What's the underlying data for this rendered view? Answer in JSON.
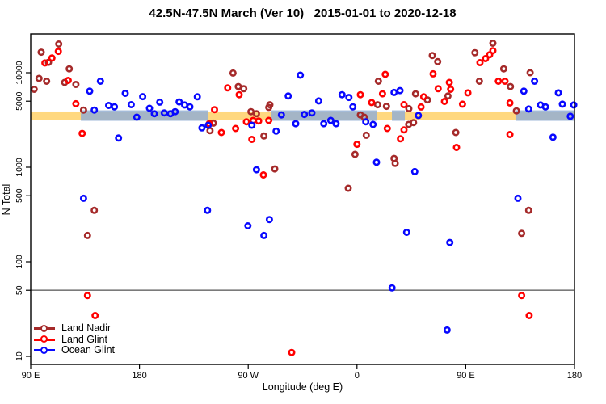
{
  "chart_data": {
    "type": "scatter",
    "title": "42.5N-47.5N March (Ver 10)   2015-01-01 to 2020-12-18",
    "x_axis": {
      "label": "Longitude (deg E)",
      "range": [
        90,
        540
      ],
      "ticks": [
        {
          "value": 90,
          "label": "90 E"
        },
        {
          "value": 180,
          "label": "180"
        },
        {
          "value": 270,
          "label": "90 W"
        },
        {
          "value": 360,
          "label": "0"
        },
        {
          "value": 450,
          "label": "90 E"
        },
        {
          "value": 540,
          "label": "180"
        }
      ]
    },
    "y_axis": {
      "label": "N Total",
      "scale": "log",
      "range": [
        10,
        25000
      ],
      "ticks": [
        {
          "value": 10,
          "label": "10"
        },
        {
          "value": 50,
          "label": "50"
        },
        {
          "value": 100,
          "label": "100"
        },
        {
          "value": 500,
          "label": "500"
        },
        {
          "value": 1000,
          "label": "1000"
        },
        {
          "value": 5000,
          "label": "5000"
        },
        {
          "value": 10000,
          "label": "10000"
        }
      ]
    },
    "reference_line": {
      "value": 50,
      "color": "#7a7a7a"
    },
    "bands": [
      {
        "name": "orange-band",
        "color": "#FFD87F",
        "opacity": 1.0,
        "lon_from": 90,
        "lon_to": 540,
        "value_from": 3160,
        "value_to": 3890
      },
      {
        "name": "blue-band-1",
        "color": "#94AFD2",
        "opacity": 0.85,
        "lon_from": 131.5,
        "lon_to": 236.5,
        "value_from": 3100,
        "value_to": 4000
      },
      {
        "name": "blue-band-2",
        "color": "#94AFD2",
        "opacity": 0.85,
        "lon_from": 288.6,
        "lon_to": 376.2,
        "value_from": 3100,
        "value_to": 4000
      },
      {
        "name": "blue-band-3",
        "color": "#94AFD2",
        "opacity": 0.85,
        "lon_from": 388.9,
        "lon_to": 399.6,
        "value_from": 3100,
        "value_to": 4000
      },
      {
        "name": "blue-band-4",
        "color": "#94AFD2",
        "opacity": 0.85,
        "lon_from": 491.2,
        "lon_to": 540,
        "value_from": 3100,
        "value_to": 4000
      }
    ],
    "series": [
      {
        "name": "Land Nadir",
        "color": "#A52A2A",
        "points": [
          [
            98.7,
            16500
          ],
          [
            113.2,
            20100
          ],
          [
            104.7,
            12900
          ],
          [
            121.9,
            11000
          ],
          [
            96.9,
            8710
          ],
          [
            103.2,
            8140
          ],
          [
            92.9,
            6680
          ],
          [
            118.1,
            7890
          ],
          [
            127.4,
            7520
          ],
          [
            257.4,
            9920
          ],
          [
            261.8,
            7140
          ],
          [
            266.3,
            6770
          ],
          [
            287.9,
            4590
          ],
          [
            377.7,
            8140
          ],
          [
            377.1,
            4590
          ],
          [
            384.4,
            4410
          ],
          [
            422.3,
            15200
          ],
          [
            426.8,
            13100
          ],
          [
            472.5,
            20500
          ],
          [
            457.6,
            16300
          ],
          [
            481.4,
            11000
          ],
          [
            461.3,
            8140
          ],
          [
            487,
            7140
          ],
          [
            435.3,
            5670
          ],
          [
            408.5,
            5980
          ],
          [
            418.3,
            5160
          ],
          [
            402.9,
            4170
          ],
          [
            133.7,
            4030
          ],
          [
            241.1,
            2930
          ],
          [
            238.4,
            2440
          ],
          [
            272.3,
            3870
          ],
          [
            276.8,
            3690
          ],
          [
            287,
            4300
          ],
          [
            283,
            2140
          ],
          [
            362.8,
            3580
          ],
          [
            366,
            3390
          ],
          [
            367.7,
            2180
          ],
          [
            358.4,
            1370
          ],
          [
            291.9,
            960
          ],
          [
            402.8,
            2840
          ],
          [
            406.8,
            2970
          ],
          [
            441.8,
            2330
          ],
          [
            390.7,
            1240
          ],
          [
            391.6,
            1100
          ],
          [
            491.9,
            3950
          ],
          [
            142.6,
            350
          ],
          [
            137,
            190
          ],
          [
            502.1,
            350
          ],
          [
            496.3,
            200
          ],
          [
            352.8,
            600
          ],
          [
            503.3,
            10000
          ]
        ]
      },
      {
        "name": "Land Glint",
        "color": "#FF0000",
        "points": [
          [
            112.9,
            16800
          ],
          [
            107.6,
            14300
          ],
          [
            101.8,
            12700
          ],
          [
            121,
            8300
          ],
          [
            127.4,
            4700
          ],
          [
            253,
            6910
          ],
          [
            262.5,
            5860
          ],
          [
            242.1,
            4070
          ],
          [
            383.4,
            9610
          ],
          [
            362.8,
            5860
          ],
          [
            381.1,
            5980
          ],
          [
            372.2,
            4840
          ],
          [
            423,
            9730
          ],
          [
            472.5,
            17100
          ],
          [
            461.8,
            12800
          ],
          [
            466.4,
            14100
          ],
          [
            469.8,
            15500
          ],
          [
            477,
            8140
          ],
          [
            482.5,
            8140
          ],
          [
            436.4,
            7890
          ],
          [
            437.5,
            6680
          ],
          [
            427.2,
            6770
          ],
          [
            432.4,
            4970
          ],
          [
            451.8,
            6130
          ],
          [
            447.3,
            4650
          ],
          [
            486.6,
            4790
          ],
          [
            415.2,
            5560
          ],
          [
            132.6,
            2280
          ],
          [
            237.8,
            2890
          ],
          [
            247.8,
            2330
          ],
          [
            259.6,
            2570
          ],
          [
            268.5,
            3030
          ],
          [
            274.1,
            3130
          ],
          [
            278.6,
            3090
          ],
          [
            287,
            3130
          ],
          [
            273,
            1970
          ],
          [
            282.6,
            830
          ],
          [
            385.1,
            2570
          ],
          [
            360,
            1750
          ],
          [
            413,
            4340
          ],
          [
            398.9,
            2480
          ],
          [
            396,
            2000
          ],
          [
            442.4,
            1620
          ],
          [
            486.6,
            2220
          ],
          [
            398.9,
            4600
          ],
          [
            137,
            44
          ],
          [
            143.3,
            27
          ],
          [
            306,
            11
          ],
          [
            496.3,
            44
          ],
          [
            502.5,
            27
          ]
        ]
      },
      {
        "name": "Ocean Glint",
        "color": "#0808FF",
        "points": [
          [
            147.7,
            8140
          ],
          [
            138.8,
            6380
          ],
          [
            168.2,
            6050
          ],
          [
            173.2,
            4600
          ],
          [
            182.7,
            5590
          ],
          [
            196.8,
            4890
          ],
          [
            212.8,
            4910
          ],
          [
            227.9,
            5560
          ],
          [
            313.1,
            9420
          ],
          [
            303.1,
            5670
          ],
          [
            328.3,
            5030
          ],
          [
            347.6,
            5860
          ],
          [
            353.3,
            5480
          ],
          [
            356.6,
            4360
          ],
          [
            395.6,
            6470
          ],
          [
            390.7,
            6190
          ],
          [
            498.1,
            6380
          ],
          [
            507,
            8140
          ],
          [
            511.9,
            4560
          ],
          [
            526.6,
            6130
          ],
          [
            530,
            4650
          ],
          [
            539.4,
            4560
          ],
          [
            536.5,
            3460
          ],
          [
            142.6,
            4030
          ],
          [
            154.5,
            4510
          ],
          [
            159.3,
            4360
          ],
          [
            188.3,
            4210
          ],
          [
            192.3,
            3690
          ],
          [
            200.5,
            3760
          ],
          [
            205.7,
            3690
          ],
          [
            209.5,
            3870
          ],
          [
            217.4,
            4560
          ],
          [
            221.7,
            4360
          ],
          [
            177.8,
            3390
          ],
          [
            162.7,
            2040
          ],
          [
            231.7,
            2610
          ],
          [
            236.9,
            2780
          ],
          [
            273,
            2780
          ],
          [
            297.5,
            3580
          ],
          [
            309.3,
            2890
          ],
          [
            293.1,
            2410
          ],
          [
            316.5,
            3620
          ],
          [
            322.7,
            3760
          ],
          [
            332.5,
            2890
          ],
          [
            338.3,
            3130
          ],
          [
            342.7,
            2890
          ],
          [
            367.3,
            3030
          ],
          [
            373.3,
            2840
          ],
          [
            376.2,
            1130
          ],
          [
            276.8,
            940
          ],
          [
            410.8,
            3530
          ],
          [
            407.8,
            900
          ],
          [
            502.1,
            4130
          ],
          [
            516,
            4350
          ],
          [
            522.2,
            2080
          ],
          [
            133.7,
            470
          ],
          [
            236.3,
            350
          ],
          [
            269.7,
            240
          ],
          [
            287.5,
            280
          ],
          [
            283,
            190
          ],
          [
            493.2,
            470
          ],
          [
            401.1,
            205
          ],
          [
            436.8,
            160
          ],
          [
            389,
            53
          ],
          [
            434.6,
            19
          ]
        ]
      }
    ],
    "legend_position": "bottom-left",
    "grid": false
  }
}
